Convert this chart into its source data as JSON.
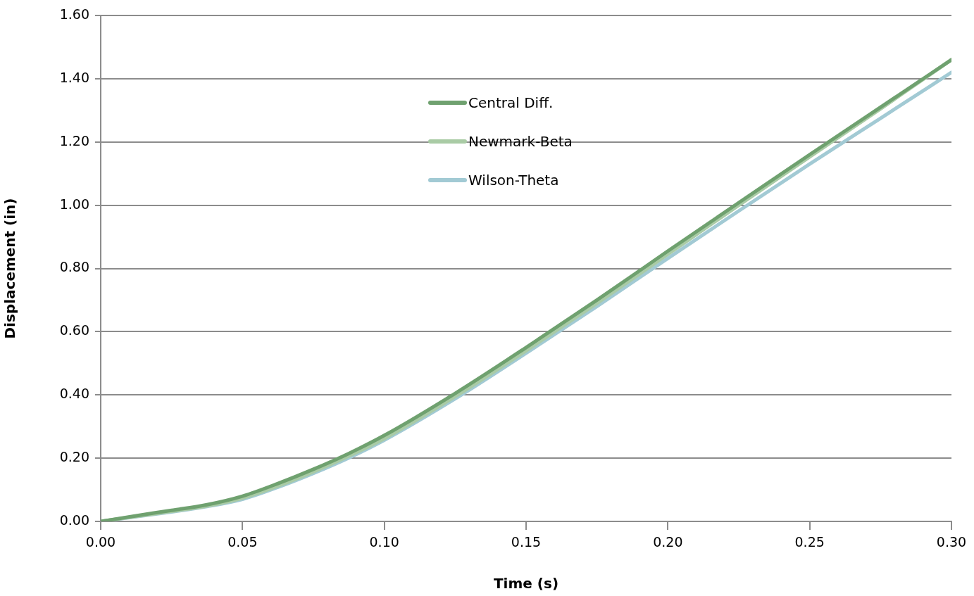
{
  "chart_data": {
    "type": "line",
    "xlabel": "Time (s)",
    "ylabel": "Displacement (in)",
    "x": [
      0,
      0.0125,
      0.025,
      0.0375,
      0.05,
      0.0625,
      0.075,
      0.0875,
      0.1,
      0.125,
      0.15,
      0.175,
      0.2,
      0.225,
      0.25,
      0.275,
      0.3
    ],
    "series": [
      {
        "name": "Central Diff.",
        "color": "#6fa16f",
        "values": [
          0,
          0.018,
          0.035,
          0.053,
          0.08,
          0.12,
          0.165,
          0.215,
          0.272,
          0.405,
          0.55,
          0.7,
          0.855,
          1.008,
          1.16,
          1.31,
          1.46
        ]
      },
      {
        "name": "Newmark-Beta",
        "color": "#a9cba5",
        "values": [
          0,
          0.016,
          0.032,
          0.049,
          0.074,
          0.112,
          0.157,
          0.207,
          0.262,
          0.395,
          0.54,
          0.69,
          0.845,
          1.0,
          1.153,
          1.305,
          1.46
        ]
      },
      {
        "name": "Wilson-Theta",
        "color": "#a2cad4",
        "values": [
          0,
          0.015,
          0.03,
          0.047,
          0.07,
          0.108,
          0.152,
          0.201,
          0.257,
          0.388,
          0.532,
          0.68,
          0.832,
          0.982,
          1.13,
          1.275,
          1.42
        ]
      }
    ],
    "xlim": [
      0,
      0.3
    ],
    "xticks": [
      {
        "value": 0,
        "label": "0.00"
      },
      {
        "value": 0.05,
        "label": "0.05"
      },
      {
        "value": 0.1,
        "label": "0.10"
      },
      {
        "value": 0.15,
        "label": "0.15"
      },
      {
        "value": 0.2,
        "label": "0.20"
      },
      {
        "value": 0.25,
        "label": "0.25"
      },
      {
        "value": 0.3,
        "label": "0.30"
      }
    ],
    "ylim": [
      0,
      1.6
    ],
    "yticks": [
      {
        "value": 0,
        "label": "0.00"
      },
      {
        "value": 0.2,
        "label": "0.20"
      },
      {
        "value": 0.4,
        "label": "0.40"
      },
      {
        "value": 0.6,
        "label": "0.60"
      },
      {
        "value": 0.8,
        "label": "0.80"
      },
      {
        "value": 1.0,
        "label": "1.00"
      },
      {
        "value": 1.2,
        "label": "1.20"
      },
      {
        "value": 1.4,
        "label": "1.40"
      },
      {
        "value": 1.6,
        "label": "1.60"
      }
    ],
    "grid": "y",
    "legend": "top",
    "marker": "none",
    "line_style": "solid"
  }
}
